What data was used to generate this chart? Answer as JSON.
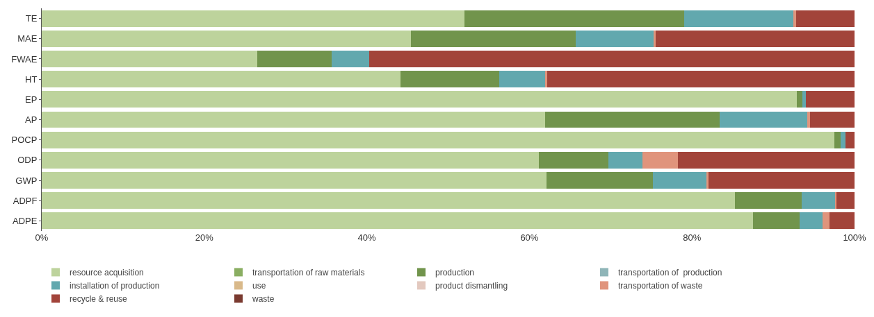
{
  "chart_data": {
    "type": "bar",
    "orientation": "horizontal",
    "stacked": true,
    "categories": [
      "TE",
      "MAE",
      "FWAE",
      "HT",
      "EP",
      "AP",
      "POCP",
      "ODP",
      "GWP",
      "ADPF",
      "ADPE"
    ],
    "series": [
      {
        "name": "resource acquisition",
        "color": "#bdd39c",
        "values": [
          52,
          45.4,
          26.5,
          44.1,
          92.9,
          61.9,
          97.5,
          61.2,
          62.1,
          85.3,
          87.5
        ]
      },
      {
        "name": "transportation of raw materials",
        "color": "#8aae62",
        "values": [
          0,
          0,
          0,
          0,
          0,
          0,
          0,
          0,
          0,
          0,
          0
        ]
      },
      {
        "name": "production",
        "color": "#71944c",
        "values": [
          27,
          20.3,
          9.2,
          12.2,
          0.7,
          21.5,
          0.8,
          8.5,
          13.1,
          8.2,
          5.7
        ]
      },
      {
        "name": "transportation of  production",
        "color": "#8fb5b8",
        "values": [
          0,
          0,
          0,
          0,
          0,
          0,
          0,
          0,
          0,
          0,
          0
        ]
      },
      {
        "name": "installation of production",
        "color": "#62a8ae",
        "values": [
          13.5,
          9.6,
          4.6,
          5.6,
          0.4,
          10.8,
          0.6,
          4.2,
          6.6,
          4.1,
          2.9
        ]
      },
      {
        "name": "use",
        "color": "#d9b98a",
        "values": [
          0,
          0,
          0,
          0,
          0,
          0,
          0,
          0,
          0,
          0,
          0
        ]
      },
      {
        "name": "product dismantling",
        "color": "#e3c9bf",
        "values": [
          0,
          0,
          0,
          0,
          0,
          0,
          0,
          0,
          0,
          0,
          0
        ]
      },
      {
        "name": "transportation of waste",
        "color": "#e0947c",
        "values": [
          0.3,
          0.2,
          0,
          0.3,
          0,
          0.3,
          0,
          4.4,
          0.2,
          0.2,
          0.8
        ]
      },
      {
        "name": "recycle & reuse",
        "color": "#a2443a",
        "values": [
          7.2,
          24.5,
          59.7,
          37.8,
          6.0,
          5.5,
          1.1,
          21.7,
          18.0,
          2.2,
          3.1
        ]
      },
      {
        "name": "waste",
        "color": "#7a3a30",
        "values": [
          0,
          0,
          0,
          0,
          0,
          0,
          0,
          0,
          0,
          0,
          0
        ]
      }
    ],
    "xlim": [
      0,
      100
    ],
    "xticks": [
      {
        "value": 0,
        "label": "0%"
      },
      {
        "value": 20,
        "label": "20%"
      },
      {
        "value": 40,
        "label": "40%"
      },
      {
        "value": 60,
        "label": "60%"
      },
      {
        "value": 80,
        "label": "80%"
      },
      {
        "value": 100,
        "label": "100%"
      }
    ],
    "legend": "bottom"
  }
}
